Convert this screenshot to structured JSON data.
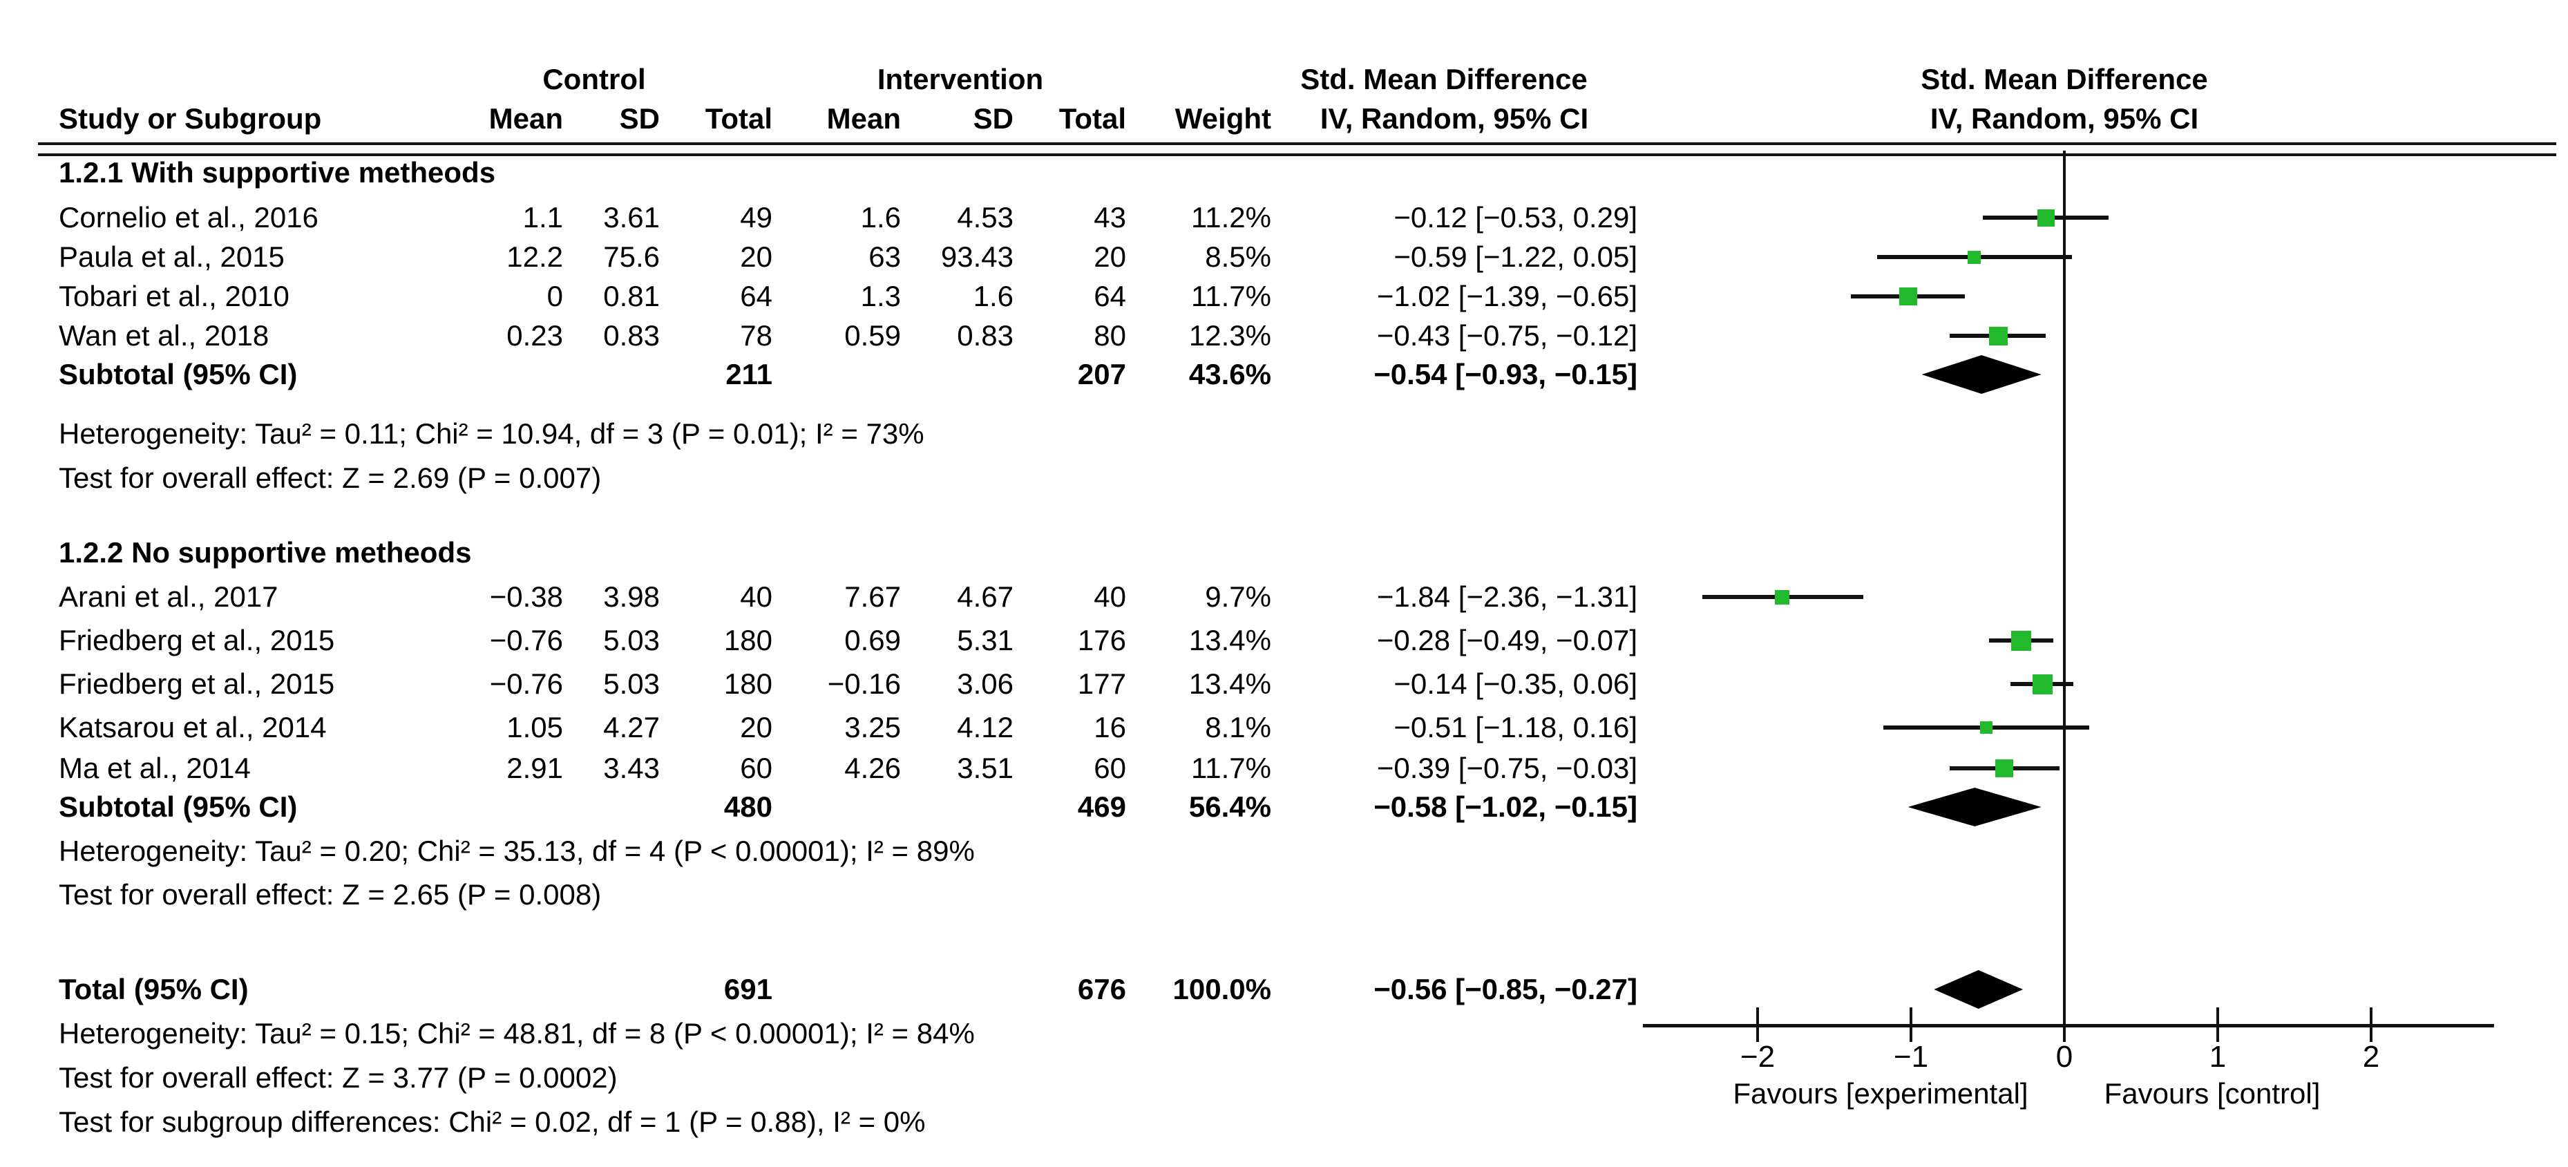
{
  "header": {
    "control_group": "Control",
    "intervention_group": "Intervention",
    "smd_text_col": "Std. Mean Difference",
    "study": "Study or Subgroup",
    "mean1": "Mean",
    "sd1": "SD",
    "total1": "Total",
    "mean2": "Mean",
    "sd2": "SD",
    "total2": "Total",
    "weight": "Weight",
    "ci_text_col": "IV, Random, 95% CI"
  },
  "colors": {
    "marker_green": "#22b92c",
    "line_black": "#111111",
    "text": "#000000",
    "background": "#ffffff"
  },
  "chart_data": {
    "type": "scatter",
    "variant": "forest-plot",
    "title": "Std. Mean Difference",
    "subtitle": "IV, Random, 95% CI",
    "effect_measure": "Std. Mean Difference",
    "model": "IV, Random, 95% CI",
    "axis": {
      "min": -2.75,
      "max": 2.8,
      "ticks": [
        -2,
        -1,
        0,
        1,
        2
      ],
      "tick_labels": [
        "−2",
        "−1",
        "0",
        "1",
        "2"
      ],
      "zero_line": 0,
      "favours_left": "Favours [experimental]",
      "favours_right": "Favours [control]"
    },
    "groups": [
      {
        "title": "1.2.1 With supportive metheods",
        "studies": [
          {
            "name": "Cornelio et al., 2016",
            "c_mean": "1.1",
            "c_sd": "3.61",
            "c_total": "49",
            "i_mean": "1.6",
            "i_sd": "4.53",
            "i_total": "43",
            "weight": "11.2%",
            "weight_pct": 11.2,
            "ci_text": "−0.12 [−0.53, 0.29]",
            "effect": -0.12,
            "lo": -0.53,
            "hi": 0.29
          },
          {
            "name": "Paula et al., 2015",
            "c_mean": "12.2",
            "c_sd": "75.6",
            "c_total": "20",
            "i_mean": "63",
            "i_sd": "93.43",
            "i_total": "20",
            "weight": "8.5%",
            "weight_pct": 8.5,
            "ci_text": "−0.59 [−1.22, 0.05]",
            "effect": -0.59,
            "lo": -1.22,
            "hi": 0.05
          },
          {
            "name": "Tobari et al., 2010",
            "c_mean": "0",
            "c_sd": "0.81",
            "c_total": "64",
            "i_mean": "1.3",
            "i_sd": "1.6",
            "i_total": "64",
            "weight": "11.7%",
            "weight_pct": 11.7,
            "ci_text": "−1.02 [−1.39, −0.65]",
            "effect": -1.02,
            "lo": -1.39,
            "hi": -0.65
          },
          {
            "name": "Wan et al., 2018",
            "c_mean": "0.23",
            "c_sd": "0.83",
            "c_total": "78",
            "i_mean": "0.59",
            "i_sd": "0.83",
            "i_total": "80",
            "weight": "12.3%",
            "weight_pct": 12.3,
            "ci_text": "−0.43 [−0.75, −0.12]",
            "effect": -0.43,
            "lo": -0.75,
            "hi": -0.12
          }
        ],
        "subtotal": {
          "label": "Subtotal (95% CI)",
          "c_total": "211",
          "i_total": "207",
          "weight": "43.6%",
          "ci_text": "−0.54 [−0.93, −0.15]",
          "effect": -0.54,
          "lo": -0.93,
          "hi": -0.15
        },
        "heterogeneity": "Heterogeneity: Tau² = 0.11; Chi² = 10.94, df = 3 (P = 0.01); I² = 73%",
        "overall_effect": "Test for overall effect: Z = 2.69 (P = 0.007)"
      },
      {
        "title": "1.2.2 No supportive metheods",
        "studies": [
          {
            "name": "Arani et al., 2017",
            "c_mean": "−0.38",
            "c_sd": "3.98",
            "c_total": "40",
            "i_mean": "7.67",
            "i_sd": "4.67",
            "i_total": "40",
            "weight": "9.7%",
            "weight_pct": 9.7,
            "ci_text": "−1.84 [−2.36, −1.31]",
            "effect": -1.84,
            "lo": -2.36,
            "hi": -1.31
          },
          {
            "name": "Friedberg et al., 2015",
            "c_mean": "−0.76",
            "c_sd": "5.03",
            "c_total": "180",
            "i_mean": "0.69",
            "i_sd": "5.31",
            "i_total": "176",
            "weight": "13.4%",
            "weight_pct": 13.4,
            "ci_text": "−0.28 [−0.49, −0.07]",
            "effect": -0.28,
            "lo": -0.49,
            "hi": -0.07
          },
          {
            "name": "Friedberg et al., 2015",
            "c_mean": "−0.76",
            "c_sd": "5.03",
            "c_total": "180",
            "i_mean": "−0.16",
            "i_sd": "3.06",
            "i_total": "177",
            "weight": "13.4%",
            "weight_pct": 13.4,
            "ci_text": "−0.14 [−0.35, 0.06]",
            "effect": -0.14,
            "lo": -0.35,
            "hi": 0.06
          },
          {
            "name": "Katsarou et al., 2014",
            "c_mean": "1.05",
            "c_sd": "4.27",
            "c_total": "20",
            "i_mean": "3.25",
            "i_sd": "4.12",
            "i_total": "16",
            "weight": "8.1%",
            "weight_pct": 8.1,
            "ci_text": "−0.51 [−1.18, 0.16]",
            "effect": -0.51,
            "lo": -1.18,
            "hi": 0.16
          },
          {
            "name": "Ma et al., 2014",
            "c_mean": "2.91",
            "c_sd": "3.43",
            "c_total": "60",
            "i_mean": "4.26",
            "i_sd": "3.51",
            "i_total": "60",
            "weight": "11.7%",
            "weight_pct": 11.7,
            "ci_text": "−0.39 [−0.75, −0.03]",
            "effect": -0.39,
            "lo": -0.75,
            "hi": -0.03
          }
        ],
        "subtotal": {
          "label": "Subtotal (95% CI)",
          "c_total": "480",
          "i_total": "469",
          "weight": "56.4%",
          "ci_text": "−0.58 [−1.02, −0.15]",
          "effect": -0.58,
          "lo": -1.02,
          "hi": -0.15
        },
        "heterogeneity": "Heterogeneity: Tau² = 0.20; Chi² = 35.13, df = 4 (P < 0.00001); I² = 89%",
        "overall_effect": "Test for overall effect: Z = 2.65 (P = 0.008)"
      }
    ],
    "total": {
      "label": "Total (95% CI)",
      "c_total": "691",
      "i_total": "676",
      "weight": "100.0%",
      "ci_text": "−0.56 [−0.85, −0.27]",
      "effect": -0.56,
      "lo": -0.85,
      "hi": -0.27
    },
    "total_heterogeneity": "Heterogeneity: Tau² = 0.15; Chi² = 48.81, df = 8 (P < 0.00001); I² = 84%",
    "total_overall_effect": "Test for overall effect: Z = 3.77 (P = 0.0002)",
    "subgroup_differences": "Test for subgroup differences: Chi² = 0.02, df = 1 (P = 0.88), I² = 0%"
  }
}
